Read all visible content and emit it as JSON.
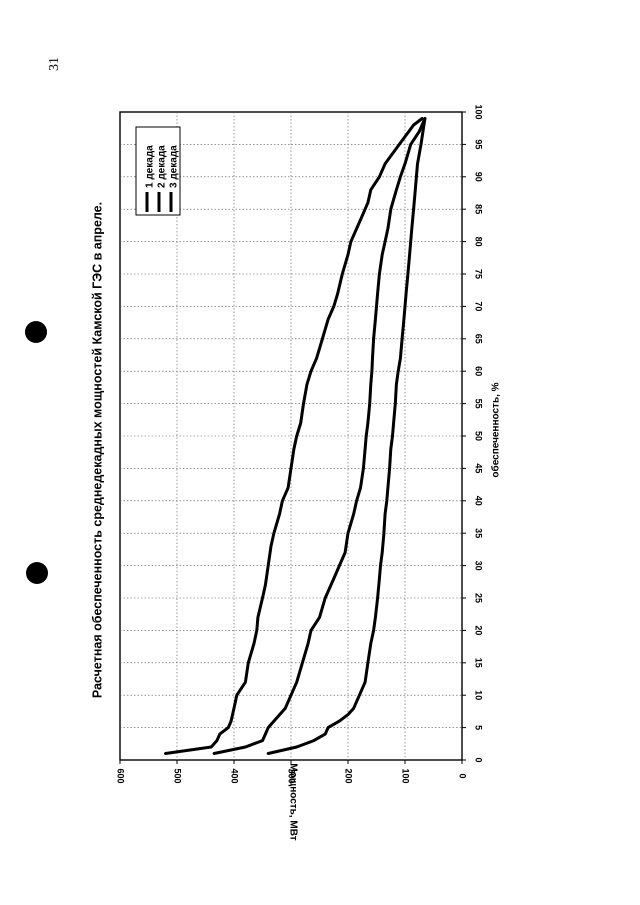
{
  "page": {
    "number": "31"
  },
  "chart_data": {
    "type": "line",
    "title": "Расчетная обеспеченность среднедекадных мощностей Камской ГЭС в апреле.",
    "xlabel": "обеспеченность, %",
    "ylabel": "Мощность, МВт",
    "xlim": [
      0,
      100
    ],
    "ylim": [
      0,
      600
    ],
    "x_ticks": [
      "0",
      "5",
      "10",
      "15",
      "20",
      "25",
      "30",
      "35",
      "40",
      "45",
      "50",
      "55",
      "60",
      "65",
      "70",
      "75",
      "80",
      "85",
      "90",
      "95",
      "100"
    ],
    "y_ticks": [
      "0",
      "100",
      "200",
      "300",
      "400",
      "500",
      "600"
    ],
    "grid": true,
    "legend_position": "top-right",
    "series": [
      {
        "name": "1 декада",
        "x": [
          1,
          2,
          3,
          4,
          5,
          6,
          8,
          10,
          12,
          15,
          18,
          20,
          22,
          25,
          27,
          30,
          33,
          35,
          38,
          40,
          42,
          45,
          48,
          50,
          52,
          55,
          58,
          60,
          62,
          65,
          68,
          70,
          72,
          75,
          78,
          80,
          82,
          84,
          86,
          88,
          90,
          92,
          95,
          98,
          99
        ],
        "y": [
          520,
          440,
          430,
          425,
          410,
          405,
          400,
          395,
          380,
          375,
          365,
          360,
          358,
          350,
          345,
          340,
          335,
          330,
          320,
          315,
          305,
          300,
          295,
          290,
          283,
          278,
          272,
          265,
          255,
          245,
          235,
          225,
          218,
          210,
          200,
          195,
          185,
          175,
          165,
          160,
          145,
          135,
          110,
          85,
          70
        ]
      },
      {
        "name": "2 декада",
        "x": [
          1,
          2,
          3,
          4,
          5,
          6,
          8,
          10,
          12,
          15,
          18,
          20,
          22,
          25,
          28,
          30,
          32,
          35,
          38,
          40,
          42,
          45,
          48,
          50,
          52,
          55,
          58,
          60,
          62,
          65,
          68,
          70,
          72,
          75,
          78,
          80,
          82,
          85,
          88,
          90,
          92,
          95,
          97,
          99
        ],
        "y": [
          435,
          380,
          350,
          345,
          340,
          330,
          310,
          300,
          290,
          280,
          270,
          265,
          250,
          240,
          225,
          215,
          205,
          200,
          190,
          185,
          178,
          173,
          170,
          168,
          165,
          162,
          160,
          158,
          157,
          155,
          152,
          150,
          148,
          145,
          140,
          135,
          130,
          125,
          115,
          108,
          100,
          90,
          75,
          65
        ]
      },
      {
        "name": "3 декада",
        "x": [
          1,
          2,
          3,
          4,
          5,
          6,
          7,
          8,
          10,
          12,
          15,
          18,
          20,
          22,
          25,
          28,
          30,
          32,
          35,
          38,
          40,
          42,
          45,
          48,
          50,
          52,
          55,
          58,
          60,
          62,
          65,
          68,
          70,
          72,
          75,
          78,
          80,
          82,
          85,
          88,
          90,
          92,
          95,
          99
        ],
        "y": [
          340,
          290,
          260,
          240,
          235,
          215,
          200,
          190,
          180,
          170,
          165,
          160,
          155,
          152,
          148,
          145,
          143,
          140,
          137,
          135,
          132,
          130,
          127,
          125,
          122,
          120,
          117,
          115,
          112,
          108,
          105,
          102,
          100,
          98,
          95,
          92,
          90,
          88,
          85,
          82,
          80,
          78,
          72,
          65
        ]
      }
    ]
  }
}
